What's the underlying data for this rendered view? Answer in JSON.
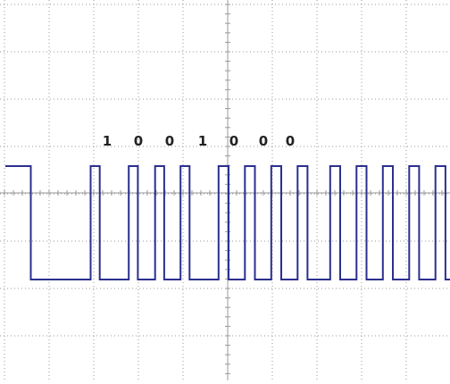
{
  "display": {
    "trace_color": "#2b2f8f",
    "grid_color": "#9a9a9a",
    "background": "#ffffff",
    "grid_divisions_x": 10,
    "grid_divisions_y": 8,
    "grid_minor_subdivisions": 5
  },
  "waveform": {
    "levels": [
      "high",
      "low"
    ],
    "segments": [
      {
        "level": "high",
        "duration": 28
      },
      {
        "level": "low",
        "duration": 66
      },
      {
        "level": "high",
        "duration": 10
      },
      {
        "level": "low",
        "duration": 32
      },
      {
        "level": "high",
        "duration": 10
      },
      {
        "level": "low",
        "duration": 19
      },
      {
        "level": "high",
        "duration": 10
      },
      {
        "level": "low",
        "duration": 18
      },
      {
        "level": "high",
        "duration": 10
      },
      {
        "level": "low",
        "duration": 32
      },
      {
        "level": "high",
        "duration": 11
      },
      {
        "level": "low",
        "duration": 18
      },
      {
        "level": "high",
        "duration": 11
      },
      {
        "level": "low",
        "duration": 18
      },
      {
        "level": "high",
        "duration": 11
      },
      {
        "level": "low",
        "duration": 18
      },
      {
        "level": "high",
        "duration": 11
      },
      {
        "level": "low",
        "duration": 25
      },
      {
        "level": "high",
        "duration": 11
      },
      {
        "level": "low",
        "duration": 18
      },
      {
        "level": "high",
        "duration": 11
      },
      {
        "level": "low",
        "duration": 18
      },
      {
        "level": "high",
        "duration": 11
      },
      {
        "level": "low",
        "duration": 18
      },
      {
        "level": "high",
        "duration": 11
      },
      {
        "level": "low",
        "duration": 18
      },
      {
        "level": "high",
        "duration": 11
      },
      {
        "level": "low",
        "duration": 5
      }
    ]
  },
  "bits": {
    "values": [
      "1",
      "0",
      "0",
      "1",
      "0",
      "0",
      "0"
    ]
  }
}
